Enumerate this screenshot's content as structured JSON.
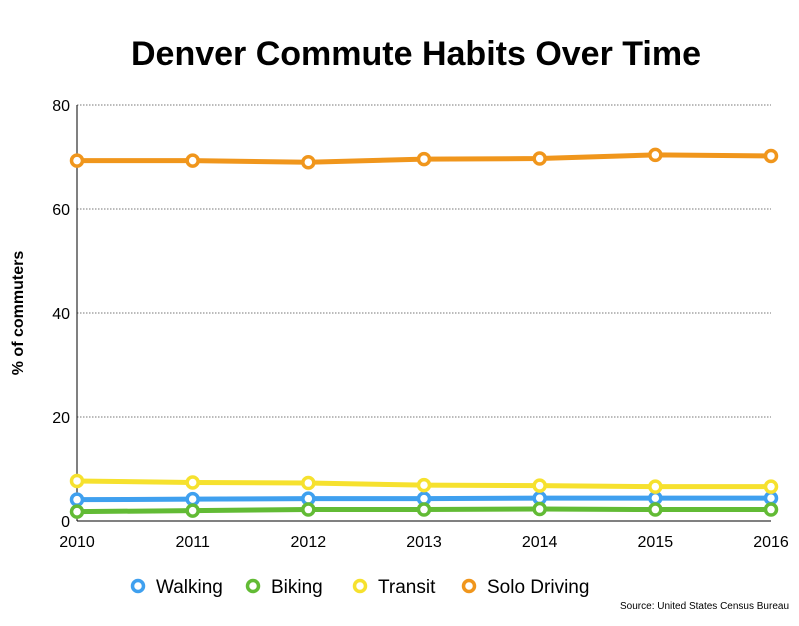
{
  "chart_data": {
    "type": "line",
    "title": "Denver Commute Habits Over Time",
    "xlabel": "",
    "ylabel": "% of commuters",
    "x": [
      "2010",
      "2011",
      "2012",
      "2013",
      "2014",
      "2015",
      "2016"
    ],
    "ylim": [
      0,
      80
    ],
    "yticks": [
      "0",
      "20",
      "40",
      "60",
      "80"
    ],
    "grid": true,
    "legend_position": "bottom",
    "series": [
      {
        "name": "Walking",
        "color": "#3fa0ef",
        "values": [
          4.1,
          4.2,
          4.3,
          4.3,
          4.4,
          4.4,
          4.4
        ]
      },
      {
        "name": "Biking",
        "color": "#62bb35",
        "values": [
          1.8,
          2.0,
          2.2,
          2.2,
          2.3,
          2.2,
          2.2
        ]
      },
      {
        "name": "Transit",
        "color": "#f6e12e",
        "values": [
          7.7,
          7.4,
          7.3,
          6.9,
          6.8,
          6.6,
          6.6
        ]
      },
      {
        "name": "Solo Driving",
        "color": "#f0961c",
        "values": [
          69.3,
          69.3,
          69.0,
          69.6,
          69.7,
          70.4,
          70.2
        ]
      }
    ],
    "source": "Source: United States Census Bureau"
  }
}
